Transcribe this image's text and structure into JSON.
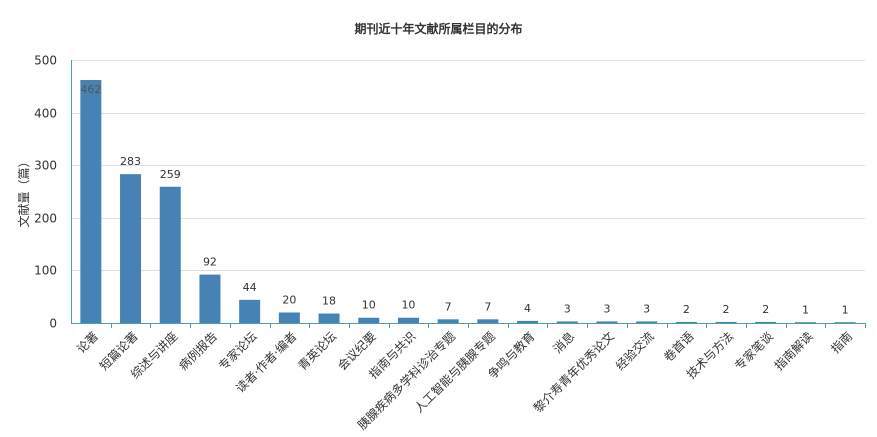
{
  "chart_data": {
    "type": "bar",
    "title": "期刊近十年文献所属栏目的分布",
    "ylabel": "文献量（篇）",
    "xlabel": "",
    "ylim": [
      0,
      500
    ],
    "yticks": [
      0,
      100,
      200,
      300,
      400,
      500
    ],
    "grid": true,
    "bar_color": "#4682b4",
    "categories": [
      "论著",
      "短篇论著",
      "综述与讲座",
      "病例报告",
      "专家论坛",
      "读者·作者·编者",
      "青英论坛",
      "会议纪要",
      "指南与共识",
      "胰腺疾病多学科诊治专题",
      "人工智能与胰腺专题",
      "争鸣与教育",
      "消息",
      "黎介寿青年优秀论文",
      "经验交流",
      "卷首语",
      "技术与方法",
      "专家笔谈",
      "指南解读",
      "指南"
    ],
    "values": [
      462,
      283,
      259,
      92,
      44,
      20,
      18,
      10,
      10,
      7,
      7,
      4,
      3,
      3,
      3,
      2,
      2,
      2,
      1,
      1
    ]
  }
}
